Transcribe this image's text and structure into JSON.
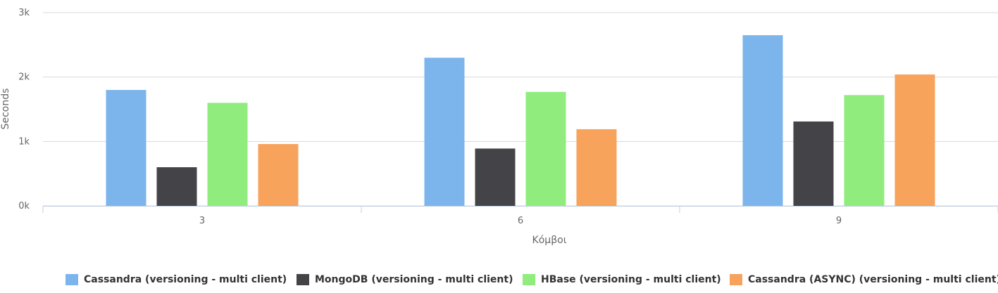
{
  "chart_data": {
    "type": "bar",
    "categories": [
      "3",
      "6",
      "9"
    ],
    "xlabel": "Κόμβοι",
    "ylabel": "Seconds",
    "ylim": [
      0,
      3000
    ],
    "yticks": [
      0,
      1000,
      2000,
      3000
    ],
    "ytick_labels": [
      "0k",
      "1k",
      "2k",
      "3k"
    ],
    "grid": true,
    "legend_position": "bottom",
    "series": [
      {
        "name": "Cassandra (versioning - multi client)",
        "color": "#7cb5ec",
        "values": [
          1800,
          2300,
          2650
        ]
      },
      {
        "name": "MongoDB (versioning - multi client)",
        "color": "#434348",
        "values": [
          600,
          890,
          1310
        ]
      },
      {
        "name": "HBase (versioning - multi client)",
        "color": "#90ed7d",
        "values": [
          1600,
          1770,
          1720
        ]
      },
      {
        "name": "Cassandra (ASYNC) (versioning - multi client)",
        "color": "#f7a35c",
        "values": [
          960,
          1190,
          2040
        ]
      }
    ]
  }
}
